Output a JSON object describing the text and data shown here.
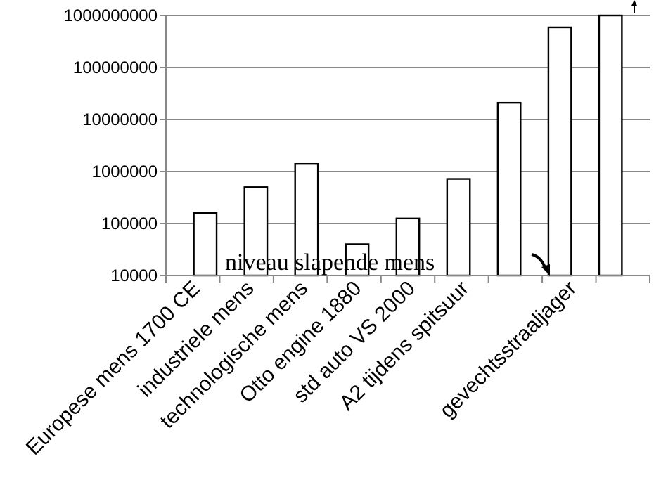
{
  "chart_data": {
    "type": "bar",
    "categories": [
      "Europese mens 1700 CE",
      "industriele mens",
      "technologische mens",
      "Otto engine 1880",
      "std auto VS 2000",
      "A2 tijdens spitsuur",
      null,
      "gevechtsstraaljager",
      null
    ],
    "values": [
      160000,
      500000,
      1400000,
      40000,
      125000,
      720000,
      21000000,
      590000000,
      1000000000
    ],
    "color": "#ffffff",
    "log": true,
    "ylim": [
      10000,
      1000000000
    ],
    "yticks": [
      10000,
      100000,
      1000000,
      10000000,
      100000000,
      1000000000
    ],
    "grid": "y",
    "annotations": [
      "niveau slapende mens"
    ]
  }
}
